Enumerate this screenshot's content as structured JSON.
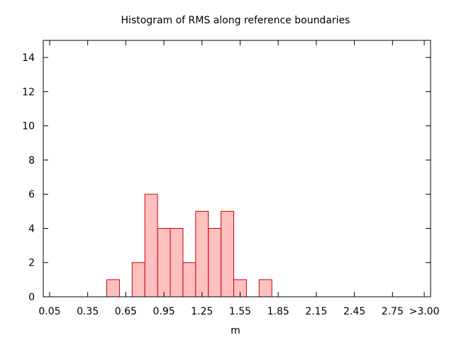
{
  "chart_data": {
    "type": "bar",
    "title": "Histogram of RMS along reference boundaries",
    "xlabel": "m",
    "ylabel": "",
    "xlim": [
      0.0,
      3.05
    ],
    "ylim": [
      0,
      15
    ],
    "bin_width": 0.1,
    "x_ticks": [
      0.05,
      0.35,
      0.65,
      0.95,
      1.25,
      1.55,
      1.85,
      2.15,
      2.45,
      2.75,
      3.0
    ],
    "x_tick_labels": [
      "0.05",
      "0.35",
      "0.65",
      "0.95",
      "1.25",
      "1.55",
      "1.85",
      "2.15",
      "2.45",
      "2.75",
      ">3.00"
    ],
    "y_ticks": [
      0,
      2,
      4,
      6,
      8,
      10,
      12,
      14
    ],
    "y_tick_labels": [
      "0",
      "2",
      "4",
      "6",
      "8",
      "10",
      "12",
      "14"
    ],
    "bins": [
      {
        "x": 0.55,
        "count": 1
      },
      {
        "x": 0.75,
        "count": 2
      },
      {
        "x": 0.85,
        "count": 6
      },
      {
        "x": 0.95,
        "count": 4
      },
      {
        "x": 1.05,
        "count": 4
      },
      {
        "x": 1.15,
        "count": 2
      },
      {
        "x": 1.25,
        "count": 5
      },
      {
        "x": 1.35,
        "count": 4
      },
      {
        "x": 1.45,
        "count": 5
      },
      {
        "x": 1.55,
        "count": 1
      },
      {
        "x": 1.75,
        "count": 1
      }
    ],
    "grid": false,
    "legend": "none",
    "colors": {
      "bar_fill": "#ffc0c0",
      "bar_stroke": "#cc0000",
      "axis": "#000000"
    }
  }
}
